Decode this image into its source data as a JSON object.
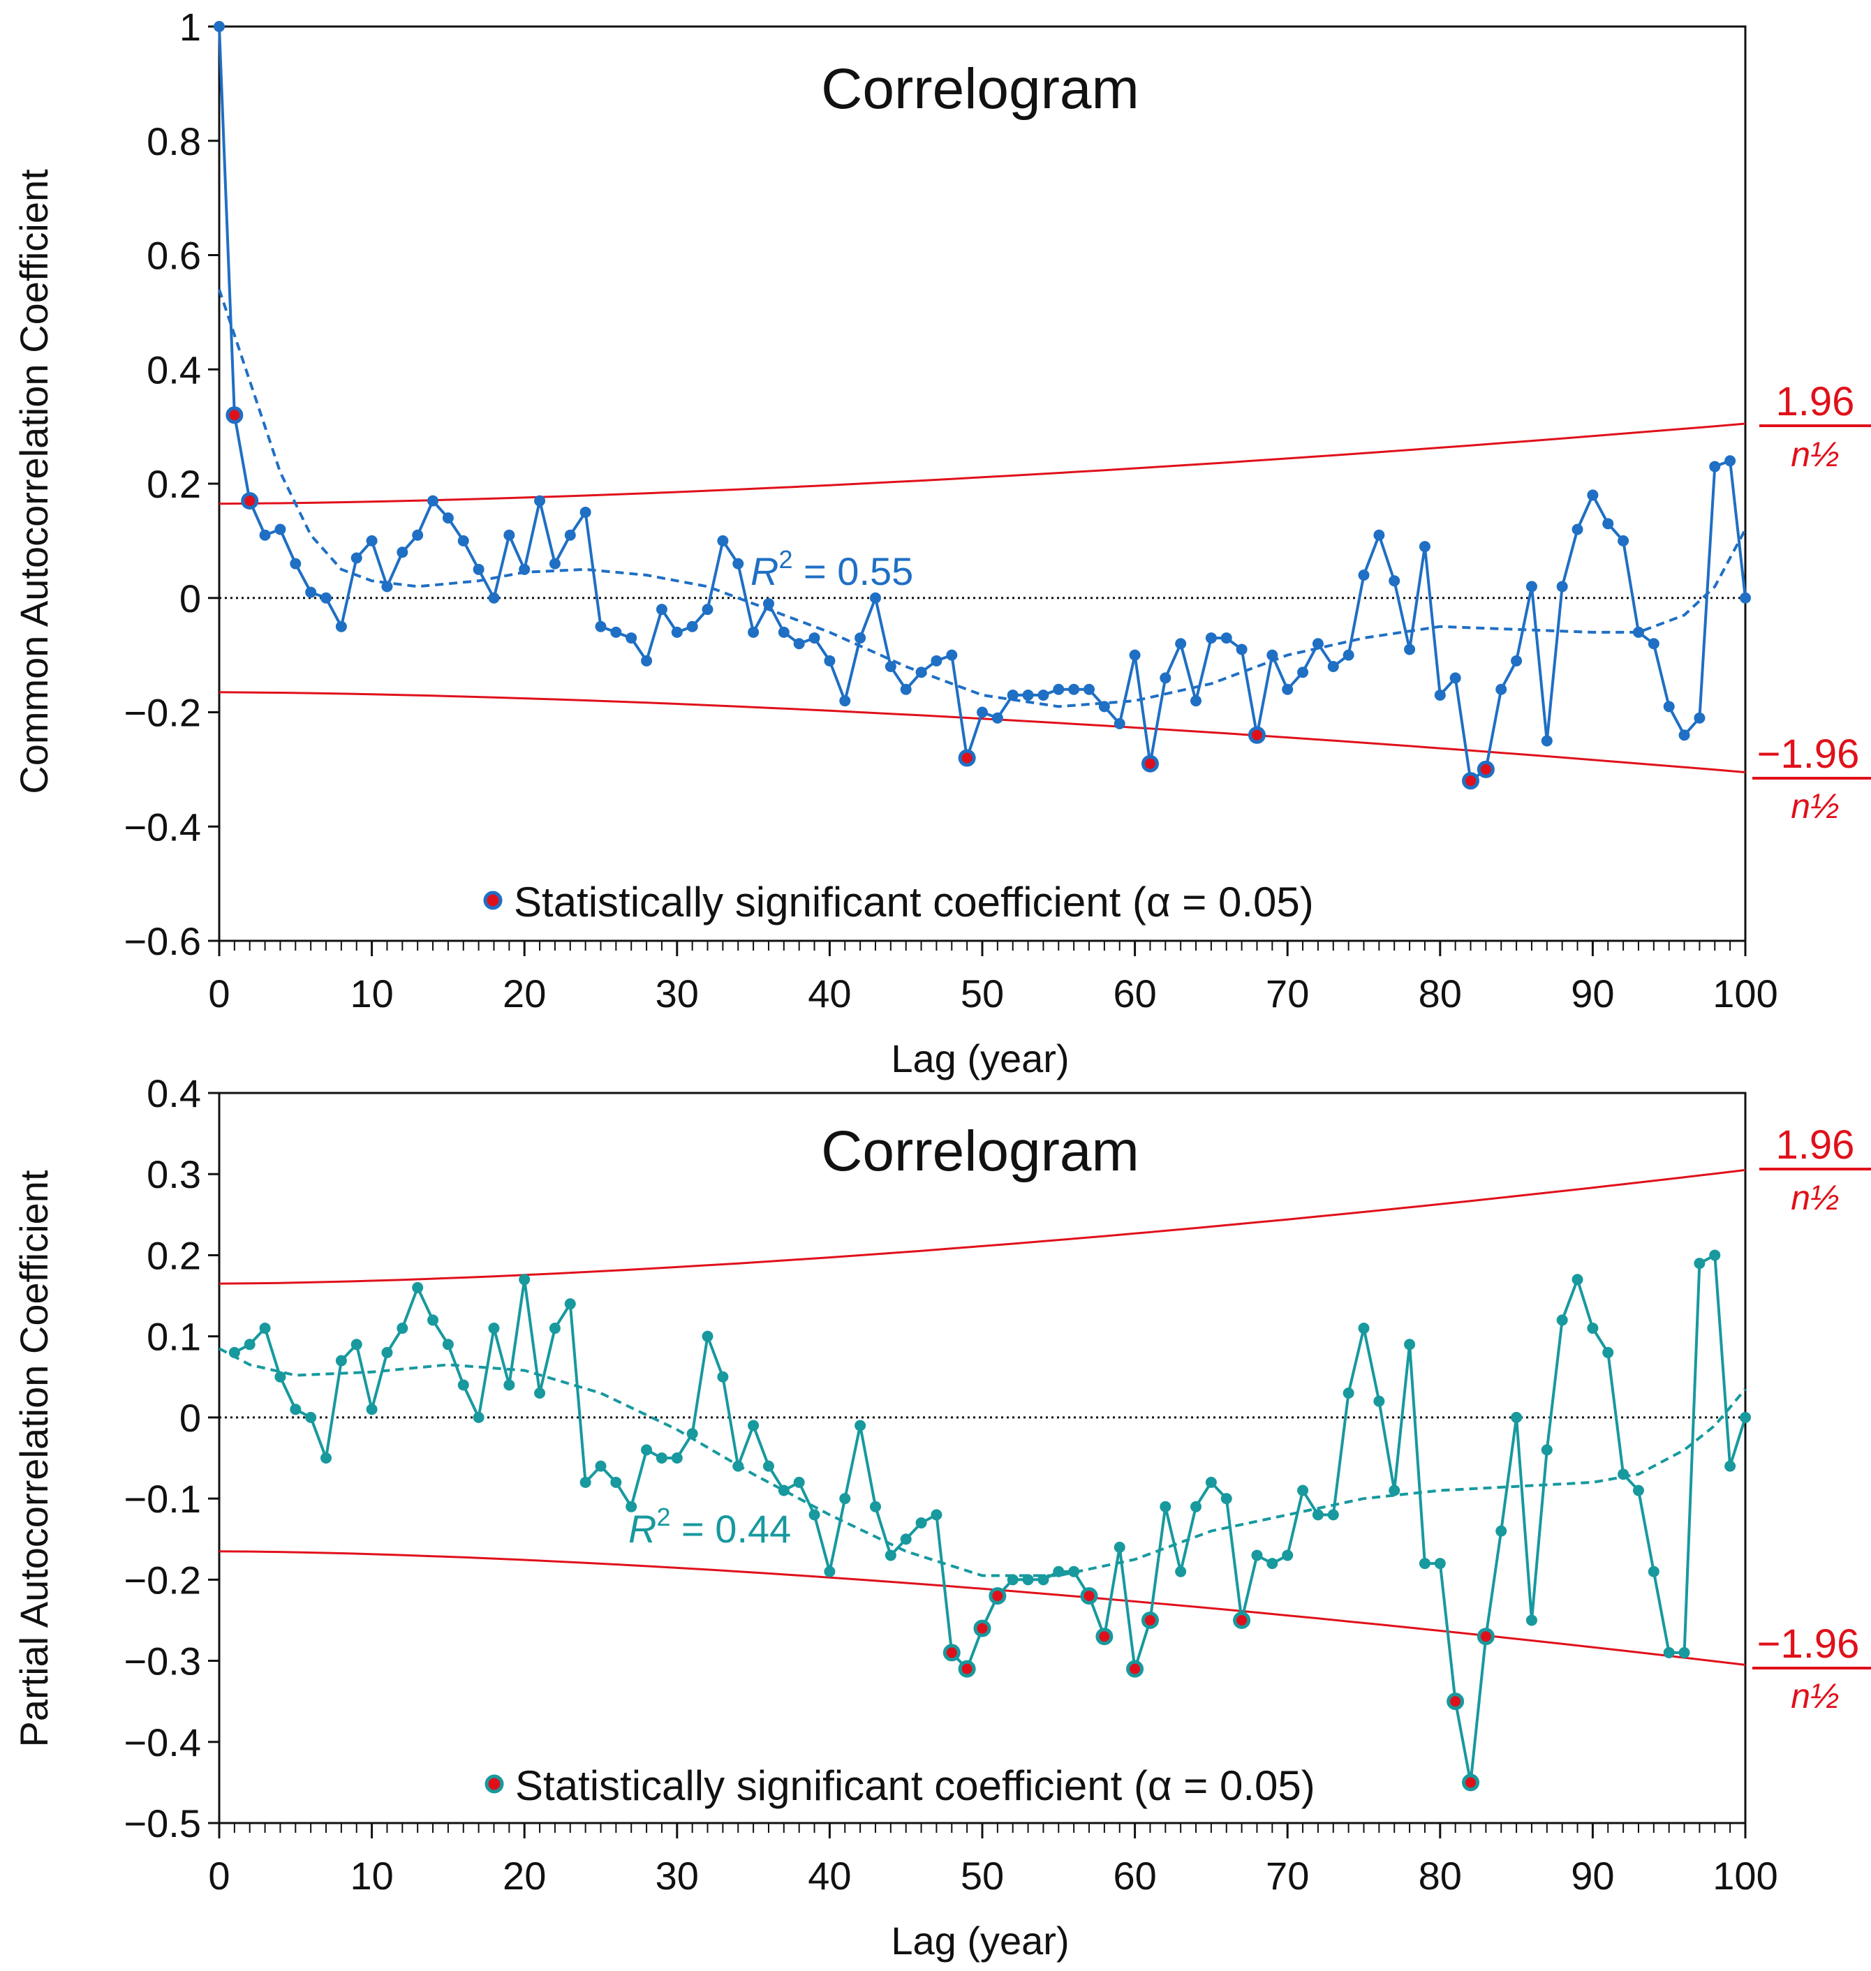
{
  "chart_data": [
    {
      "type": "line",
      "title": "Correlogram",
      "xlabel": "Lag (year)",
      "ylabel": "Common Autocorrelation Coefficient",
      "xlim": [
        0,
        100
      ],
      "ylim": [
        -0.6,
        1
      ],
      "x_ticks": [
        "0",
        "10",
        "20",
        "30",
        "40",
        "50",
        "60",
        "70",
        "80",
        "90",
        "100"
      ],
      "y_ticks": [
        "1",
        "0.8",
        "0.6",
        "0.4",
        "0.2",
        "0",
        "−0.2",
        "−0.4",
        "−0.6"
      ],
      "y_tick_values": [
        1,
        0.8,
        0.6,
        0.4,
        0.2,
        0,
        -0.2,
        -0.4,
        -0.6
      ],
      "series_color": "#1f6fc4",
      "significant_color": "#e0101a",
      "bound_color": "#e0101a",
      "values": [
        1.0,
        0.32,
        0.17,
        0.11,
        0.12,
        0.06,
        0.01,
        0.0,
        -0.05,
        0.07,
        0.1,
        0.02,
        0.08,
        0.11,
        0.17,
        0.14,
        0.1,
        0.05,
        0.0,
        0.11,
        0.05,
        0.17,
        0.06,
        0.11,
        0.15,
        -0.05,
        -0.06,
        -0.07,
        -0.11,
        -0.02,
        -0.06,
        -0.05,
        -0.02,
        0.1,
        0.06,
        -0.06,
        -0.01,
        -0.06,
        -0.08,
        -0.07,
        -0.11,
        -0.18,
        -0.07,
        0.0,
        -0.12,
        -0.16,
        -0.13,
        -0.11,
        -0.1,
        -0.28,
        -0.2,
        -0.21,
        -0.17,
        -0.17,
        -0.17,
        -0.16,
        -0.16,
        -0.16,
        -0.19,
        -0.22,
        -0.1,
        -0.29,
        -0.14,
        -0.08,
        -0.18,
        -0.07,
        -0.07,
        -0.09,
        -0.24,
        -0.1,
        -0.16,
        -0.13,
        -0.08,
        -0.12,
        -0.1,
        0.04,
        0.11,
        0.03,
        -0.09,
        0.09,
        -0.17,
        -0.14,
        -0.32,
        -0.3,
        -0.16,
        -0.11,
        0.02,
        -0.25,
        0.02,
        0.12,
        0.18,
        0.13,
        0.1,
        -0.06,
        -0.08,
        -0.19,
        -0.24,
        -0.21,
        0.23,
        0.24,
        0.0
      ],
      "significant_lags": [
        1,
        2,
        49,
        61,
        68,
        82,
        83
      ],
      "trend_points": [
        [
          0,
          0.54
        ],
        [
          2,
          0.38
        ],
        [
          4,
          0.22
        ],
        [
          6,
          0.11
        ],
        [
          8,
          0.05
        ],
        [
          10,
          0.03
        ],
        [
          13,
          0.02
        ],
        [
          17,
          0.03
        ],
        [
          20,
          0.045
        ],
        [
          24,
          0.05
        ],
        [
          28,
          0.04
        ],
        [
          32,
          0.02
        ],
        [
          36,
          -0.02
        ],
        [
          40,
          -0.06
        ],
        [
          45,
          -0.12
        ],
        [
          50,
          -0.17
        ],
        [
          55,
          -0.19
        ],
        [
          60,
          -0.18
        ],
        [
          65,
          -0.15
        ],
        [
          70,
          -0.1
        ],
        [
          75,
          -0.07
        ],
        [
          80,
          -0.05
        ],
        [
          85,
          -0.055
        ],
        [
          90,
          -0.06
        ],
        [
          93,
          -0.06
        ],
        [
          96,
          -0.03
        ],
        [
          98,
          0.02
        ],
        [
          100,
          0.12
        ]
      ],
      "r_squared": {
        "symbol": "R",
        "superscript": "2",
        "text": " = 0.55"
      },
      "bounds": {
        "upper_label": "1.96",
        "lower_label": "−1.96",
        "denominator": "n½",
        "upper_start": 0.165,
        "upper_end": 0.305
      },
      "legend": "Statistically significant coefficient (α = 0.05)"
    },
    {
      "type": "line",
      "title": "Correlogram",
      "xlabel": "Lag (year)",
      "ylabel": "Partial Autocorrelation Coefficient",
      "xlim": [
        0,
        100
      ],
      "ylim": [
        -0.5,
        0.4
      ],
      "x_ticks": [
        "0",
        "10",
        "20",
        "30",
        "40",
        "50",
        "60",
        "70",
        "80",
        "90",
        "100"
      ],
      "y_ticks": [
        "0.4",
        "0.3",
        "0.2",
        "0.1",
        "0",
        "−0.1",
        "−0.2",
        "−0.3",
        "−0.4",
        "−0.5"
      ],
      "y_tick_values": [
        0.4,
        0.3,
        0.2,
        0.1,
        0,
        -0.1,
        -0.2,
        -0.3,
        -0.4,
        -0.5
      ],
      "series_color": "#17999e",
      "significant_color": "#e0101a",
      "bound_color": "#e0101a",
      "values": [
        null,
        0.08,
        0.09,
        0.11,
        0.05,
        0.01,
        0.0,
        -0.05,
        0.07,
        0.09,
        0.01,
        0.08,
        0.11,
        0.16,
        0.12,
        0.09,
        0.04,
        0.0,
        0.11,
        0.04,
        0.17,
        0.03,
        0.11,
        0.14,
        -0.08,
        -0.06,
        -0.08,
        -0.11,
        -0.04,
        -0.05,
        -0.05,
        -0.02,
        0.1,
        0.05,
        -0.06,
        -0.01,
        -0.06,
        -0.09,
        -0.08,
        -0.12,
        -0.19,
        -0.1,
        -0.01,
        -0.11,
        -0.17,
        -0.15,
        -0.13,
        -0.12,
        -0.29,
        -0.31,
        -0.26,
        -0.22,
        -0.2,
        -0.2,
        -0.2,
        -0.19,
        -0.19,
        -0.22,
        -0.27,
        -0.16,
        -0.31,
        -0.25,
        -0.11,
        -0.19,
        -0.11,
        -0.08,
        -0.1,
        -0.25,
        -0.17,
        -0.18,
        -0.17,
        -0.09,
        -0.12,
        -0.12,
        0.03,
        0.11,
        0.02,
        -0.09,
        0.09,
        -0.18,
        -0.18,
        -0.35,
        -0.45,
        -0.27,
        -0.14,
        0.0,
        -0.25,
        -0.04,
        0.12,
        0.17,
        0.11,
        0.08,
        -0.07,
        -0.09,
        -0.19,
        -0.29,
        -0.29,
        0.19,
        0.2,
        -0.06,
        0.0
      ],
      "significant_lags": [
        48,
        49,
        50,
        51,
        57,
        58,
        60,
        61,
        67,
        81,
        82,
        83
      ],
      "trend_points": [
        [
          0,
          0.085
        ],
        [
          2,
          0.065
        ],
        [
          5,
          0.052
        ],
        [
          10,
          0.056
        ],
        [
          15,
          0.065
        ],
        [
          20,
          0.058
        ],
        [
          25,
          0.03
        ],
        [
          30,
          -0.015
        ],
        [
          35,
          -0.07
        ],
        [
          40,
          -0.12
        ],
        [
          45,
          -0.165
        ],
        [
          50,
          -0.195
        ],
        [
          55,
          -0.195
        ],
        [
          60,
          -0.175
        ],
        [
          65,
          -0.14
        ],
        [
          70,
          -0.12
        ],
        [
          75,
          -0.1
        ],
        [
          80,
          -0.09
        ],
        [
          85,
          -0.085
        ],
        [
          90,
          -0.08
        ],
        [
          93,
          -0.07
        ],
        [
          96,
          -0.04
        ],
        [
          98,
          -0.01
        ],
        [
          100,
          0.035
        ]
      ],
      "r_squared": {
        "symbol": "R",
        "superscript": "2",
        "text": " = 0.44"
      },
      "bounds": {
        "upper_label": "1.96",
        "lower_label": "−1.96",
        "denominator": "n½",
        "upper_start": 0.165,
        "upper_end": 0.305
      },
      "legend": "Statistically significant coefficient (α = 0.05)"
    }
  ]
}
